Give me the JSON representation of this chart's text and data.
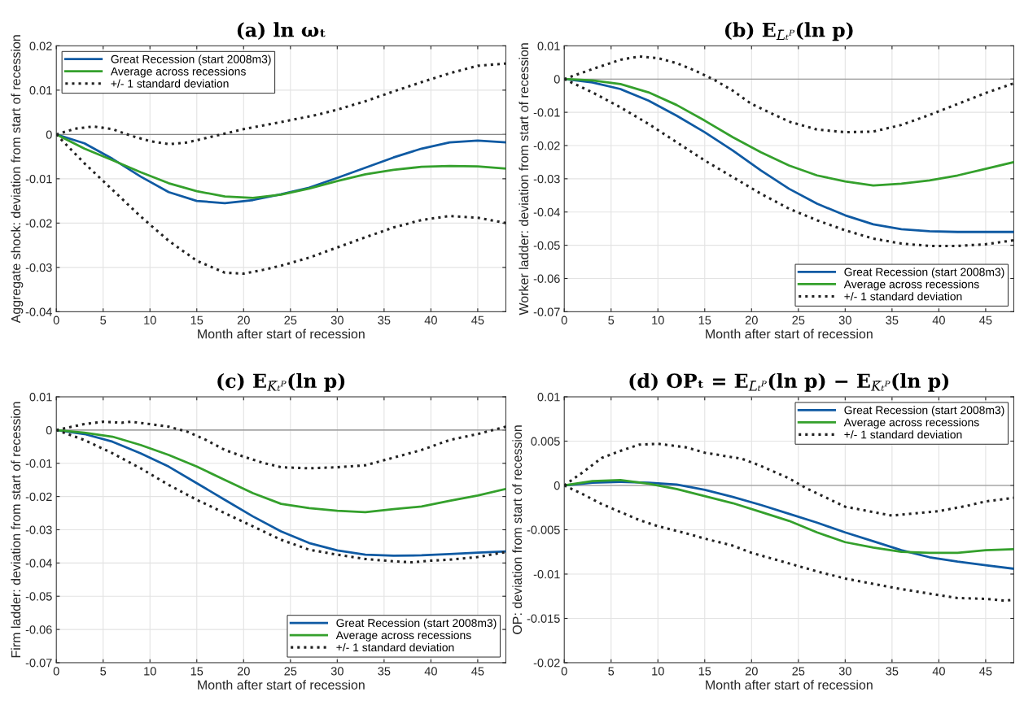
{
  "chart_data": [
    {
      "type": "line",
      "title": "(a) ln ωₜ",
      "xlabel": "Month after start of recession",
      "ylabel": "Aggregate shock: deviation from start of recession",
      "xlim": [
        0,
        48
      ],
      "xticks": [
        0,
        5,
        10,
        15,
        20,
        25,
        30,
        35,
        40,
        45
      ],
      "ylim": [
        -0.04,
        0.02
      ],
      "yticks": [
        -0.04,
        -0.03,
        -0.02,
        -0.01,
        0,
        0.01,
        0.02
      ],
      "grid": true,
      "legend": "top left",
      "ref_lines": [
        {
          "axis": "y",
          "value": 0,
          "color": "#888888"
        }
      ],
      "series": [
        {
          "name": "Great Recession (start 2008m3)",
          "color": "#0f5aa3",
          "line_style": "solid",
          "x": [
            0,
            3,
            6,
            9,
            12,
            15,
            18,
            21,
            24,
            27,
            30,
            33,
            36,
            39,
            42,
            45,
            48
          ],
          "values": [
            0,
            -0.002,
            -0.0055,
            -0.0095,
            -0.013,
            -0.015,
            -0.0155,
            -0.0148,
            -0.0135,
            -0.012,
            -0.0098,
            -0.0075,
            -0.0052,
            -0.0032,
            -0.0018,
            -0.0014,
            -0.0018
          ]
        },
        {
          "name": "Average across recessions",
          "color": "#34a02c",
          "line_style": "solid",
          "x": [
            0,
            3,
            6,
            9,
            12,
            15,
            18,
            21,
            24,
            27,
            30,
            33,
            36,
            39,
            42,
            45,
            48
          ],
          "values": [
            0,
            -0.0032,
            -0.0058,
            -0.0085,
            -0.011,
            -0.0128,
            -0.014,
            -0.0143,
            -0.0136,
            -0.0122,
            -0.0105,
            -0.009,
            -0.008,
            -0.0073,
            -0.0071,
            -0.0072,
            -0.0077
          ]
        },
        {
          "name": "+/- 1 standard deviation",
          "color": "#222222",
          "line_style": "dotted",
          "x": [
            0,
            2,
            4,
            6,
            8,
            10,
            12,
            14,
            16,
            18,
            20,
            24,
            28,
            30,
            33,
            36,
            39,
            42,
            45,
            48
          ],
          "values": [
            0,
            0.0013,
            0.0018,
            0.0012,
            -0.0003,
            -0.0015,
            -0.0022,
            -0.0018,
            -0.0008,
            0.0002,
            0.0012,
            0.0028,
            0.0045,
            0.0056,
            0.0075,
            0.0097,
            0.0118,
            0.0138,
            0.0155,
            0.016
          ]
        },
        {
          "color": "#222222",
          "line_style": "dotted",
          "x": [
            0,
            3,
            6,
            9,
            12,
            15,
            18,
            20,
            22,
            24,
            27,
            30,
            33,
            36,
            39,
            42,
            45,
            48
          ],
          "values": [
            0,
            -0.0065,
            -0.0125,
            -0.0185,
            -0.024,
            -0.0285,
            -0.0312,
            -0.0314,
            -0.0306,
            -0.0296,
            -0.0278,
            -0.0255,
            -0.0232,
            -0.021,
            -0.0193,
            -0.0184,
            -0.0188,
            -0.02
          ]
        }
      ]
    },
    {
      "type": "line",
      "title": "(b) E$_{L̄ₜᴾ}$(ln p)",
      "xlabel": "Month after start of recession",
      "ylabel": "Worker ladder: deviation from start of recession",
      "xlim": [
        0,
        48
      ],
      "xticks": [
        0,
        5,
        10,
        15,
        20,
        25,
        30,
        35,
        40,
        45
      ],
      "ylim": [
        -0.07,
        0.01
      ],
      "yticks": [
        -0.07,
        -0.06,
        -0.05,
        -0.04,
        -0.03,
        -0.02,
        -0.01,
        0,
        0.01
      ],
      "grid": true,
      "legend": "bottom right",
      "ref_lines": [
        {
          "axis": "y",
          "value": 0,
          "color": "#888888"
        }
      ],
      "series": [
        {
          "name": "Great Recession (start 2008m3)",
          "color": "#0f5aa3",
          "line_style": "solid",
          "x": [
            0,
            3,
            6,
            9,
            12,
            15,
            18,
            21,
            24,
            27,
            30,
            33,
            36,
            39,
            42,
            45,
            48
          ],
          "values": [
            0,
            -0.001,
            -0.003,
            -0.0065,
            -0.011,
            -0.016,
            -0.0215,
            -0.0275,
            -0.033,
            -0.0375,
            -0.041,
            -0.0437,
            -0.0452,
            -0.0458,
            -0.046,
            -0.046,
            -0.046
          ]
        },
        {
          "name": "Average across recessions",
          "color": "#34a02c",
          "line_style": "solid",
          "x": [
            0,
            3,
            6,
            9,
            12,
            15,
            18,
            21,
            24,
            27,
            30,
            33,
            36,
            39,
            42,
            45,
            48
          ],
          "values": [
            0,
            -0.0004,
            -0.0015,
            -0.004,
            -0.0078,
            -0.0125,
            -0.0175,
            -0.022,
            -0.026,
            -0.029,
            -0.0308,
            -0.032,
            -0.0315,
            -0.0305,
            -0.029,
            -0.027,
            -0.025
          ]
        },
        {
          "name": "+/- 1 standard deviation",
          "color": "#222222",
          "line_style": "dotted",
          "x": [
            0,
            3,
            6,
            8,
            10,
            12,
            14,
            16,
            18,
            20,
            24,
            27,
            30,
            33,
            36,
            39,
            42,
            45,
            48
          ],
          "values": [
            0,
            0.003,
            0.0058,
            0.0068,
            0.0063,
            0.0048,
            0.0025,
            -0.0002,
            -0.0035,
            -0.0075,
            -0.0128,
            -0.0152,
            -0.016,
            -0.0158,
            -0.0138,
            -0.0108,
            -0.0075,
            -0.0042,
            -0.0013
          ]
        },
        {
          "color": "#222222",
          "line_style": "dotted",
          "x": [
            0,
            3,
            6,
            9,
            12,
            15,
            18,
            21,
            24,
            27,
            30,
            33,
            36,
            39,
            42,
            45,
            48
          ],
          "values": [
            0,
            -0.004,
            -0.0085,
            -0.0135,
            -0.019,
            -0.0245,
            -0.0295,
            -0.0345,
            -0.039,
            -0.0425,
            -0.0455,
            -0.048,
            -0.0495,
            -0.0502,
            -0.0502,
            -0.0497,
            -0.0485
          ]
        }
      ]
    },
    {
      "type": "line",
      "title": "(c) E$_{K̄ₜᴾ}$(ln p)",
      "xlabel": "Month after start of recession",
      "ylabel": "Firm ladder: deviation from start of recession",
      "xlim": [
        0,
        48
      ],
      "xticks": [
        0,
        5,
        10,
        15,
        20,
        25,
        30,
        35,
        40,
        45
      ],
      "ylim": [
        -0.07,
        0.01
      ],
      "yticks": [
        -0.07,
        -0.06,
        -0.05,
        -0.04,
        -0.03,
        -0.02,
        -0.01,
        0,
        0.01
      ],
      "grid": true,
      "legend": "bottom right",
      "ref_lines": [
        {
          "axis": "y",
          "value": 0,
          "color": "#888888"
        }
      ],
      "series": [
        {
          "name": "Great Recession (start 2008m3)",
          "color": "#0f5aa3",
          "line_style": "solid",
          "x": [
            0,
            3,
            6,
            9,
            12,
            15,
            18,
            21,
            24,
            27,
            30,
            33,
            36,
            39,
            42,
            45,
            48
          ],
          "values": [
            0,
            -0.0012,
            -0.0035,
            -0.007,
            -0.011,
            -0.016,
            -0.021,
            -0.026,
            -0.0305,
            -0.034,
            -0.0362,
            -0.0375,
            -0.0378,
            -0.0377,
            -0.0373,
            -0.0369,
            -0.0365
          ]
        },
        {
          "name": "Average across recessions",
          "color": "#34a02c",
          "line_style": "solid",
          "x": [
            0,
            3,
            6,
            9,
            12,
            15,
            18,
            21,
            24,
            27,
            30,
            33,
            36,
            39,
            42,
            45,
            48
          ],
          "values": [
            0,
            -0.0008,
            -0.002,
            -0.0045,
            -0.0075,
            -0.011,
            -0.015,
            -0.019,
            -0.0222,
            -0.0235,
            -0.0243,
            -0.0247,
            -0.0238,
            -0.023,
            -0.0213,
            -0.0197,
            -0.0177
          ]
        },
        {
          "name": "+/- 1 standard deviation",
          "color": "#222222",
          "line_style": "dotted",
          "x": [
            0,
            3,
            5,
            7,
            8,
            10,
            12,
            14,
            16,
            18,
            20,
            22,
            24,
            27,
            30,
            33,
            36,
            39,
            42,
            45,
            48
          ],
          "values": [
            0,
            0.0018,
            0.0025,
            0.0022,
            0.0025,
            0.0018,
            0.001,
            -0.0005,
            -0.003,
            -0.006,
            -0.008,
            -0.0098,
            -0.0112,
            -0.0115,
            -0.0112,
            -0.0106,
            -0.0083,
            -0.006,
            -0.003,
            -0.0012,
            0.001
          ]
        },
        {
          "color": "#222222",
          "line_style": "dotted",
          "x": [
            0,
            3,
            6,
            9,
            12,
            15,
            18,
            21,
            24,
            27,
            30,
            33,
            36,
            38,
            40,
            42,
            45,
            48
          ],
          "values": [
            0,
            -0.003,
            -0.007,
            -0.0115,
            -0.0165,
            -0.021,
            -0.025,
            -0.029,
            -0.033,
            -0.036,
            -0.0375,
            -0.0388,
            -0.0395,
            -0.0398,
            -0.0393,
            -0.039,
            -0.0382,
            -0.0367
          ]
        }
      ]
    },
    {
      "type": "line",
      "title": "(d) OPₜ = E$_{L̄ₜᴾ}$(ln p) − E$_{K̄ₜᴾ}$(ln p)",
      "xlabel": "Month after start of recession",
      "ylabel": "OP: deviation from start of recession",
      "xlim": [
        0,
        48
      ],
      "xticks": [
        0,
        5,
        10,
        15,
        20,
        25,
        30,
        35,
        40,
        45
      ],
      "ylim": [
        -0.02,
        0.01
      ],
      "yticks": [
        -0.02,
        -0.015,
        -0.01,
        -0.005,
        0,
        0.005,
        0.01
      ],
      "grid": true,
      "legend": "top right",
      "ref_lines": [
        {
          "axis": "y",
          "value": 0,
          "color": "#888888"
        }
      ],
      "series": [
        {
          "name": "Great Recession (start 2008m3)",
          "color": "#0f5aa3",
          "line_style": "solid",
          "x": [
            0,
            3,
            6,
            9,
            12,
            15,
            18,
            21,
            24,
            27,
            30,
            33,
            36,
            39,
            42,
            45,
            48
          ],
          "values": [
            0,
            0.0003,
            0.0004,
            0.0003,
            0.0001,
            -0.0005,
            -0.0013,
            -0.0022,
            -0.0032,
            -0.0042,
            -0.0053,
            -0.0063,
            -0.0073,
            -0.0081,
            -0.0086,
            -0.009,
            -0.0094
          ]
        },
        {
          "name": "Average across recessions",
          "color": "#34a02c",
          "line_style": "solid",
          "x": [
            0,
            3,
            6,
            9,
            12,
            15,
            18,
            21,
            24,
            27,
            30,
            33,
            36,
            39,
            42,
            45,
            48
          ],
          "values": [
            0,
            0.0005,
            0.0006,
            0.0002,
            -0.0004,
            -0.0012,
            -0.002,
            -0.003,
            -0.004,
            -0.0053,
            -0.0064,
            -0.007,
            -0.0075,
            -0.0076,
            -0.0076,
            -0.0073,
            -0.0072
          ]
        },
        {
          "name": "+/- 1 standard deviation",
          "color": "#222222",
          "line_style": "dotted",
          "x": [
            0,
            2,
            4,
            6,
            8,
            10,
            13,
            15,
            19,
            21,
            24,
            26,
            28,
            30,
            33,
            35,
            38,
            40,
            43,
            45,
            48
          ],
          "values": [
            0,
            0.0015,
            0.0031,
            0.0039,
            0.0046,
            0.0047,
            0.0043,
            0.0037,
            0.003,
            0.0022,
            0.0008,
            -0.0004,
            -0.0014,
            -0.0024,
            -0.003,
            -0.0034,
            -0.0031,
            -0.0029,
            -0.0023,
            -0.0018,
            -0.0014
          ]
        },
        {
          "color": "#222222",
          "line_style": "dotted",
          "x": [
            0,
            2,
            4,
            6,
            8,
            10,
            13,
            15,
            18,
            20,
            22,
            24,
            27,
            30,
            33,
            36,
            39,
            42,
            45,
            47,
            48
          ],
          "values": [
            0,
            -0.001,
            -0.0021,
            -0.003,
            -0.0039,
            -0.0046,
            -0.0054,
            -0.006,
            -0.0068,
            -0.0076,
            -0.0082,
            -0.0088,
            -0.0097,
            -0.0105,
            -0.0111,
            -0.0117,
            -0.0122,
            -0.0127,
            -0.0128,
            -0.013,
            -0.0129
          ]
        }
      ]
    }
  ]
}
